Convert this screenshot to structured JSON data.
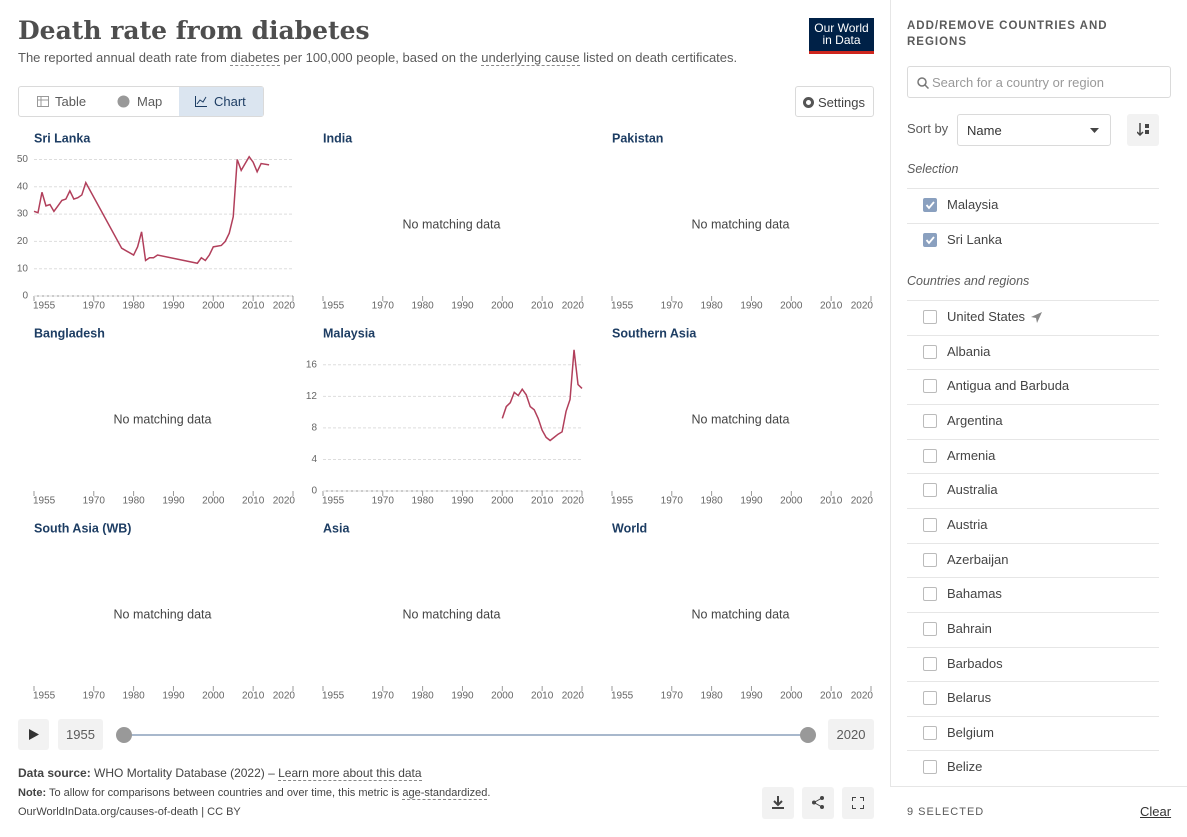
{
  "header": {
    "title": "Death rate from diabetes",
    "subtitle": [
      "The reported annual death rate from ",
      "diabetes",
      " per 100,000 people, based on the ",
      "underlying cause",
      " listed on death certificates."
    ],
    "logo": [
      "Our World",
      "in Data"
    ]
  },
  "tabs": [
    "Table",
    "Map",
    "Chart"
  ],
  "settings_button": "Settings",
  "chart_data": [
    {
      "type": "line",
      "title": "Sri Lanka",
      "color": "#b13f5b",
      "x": [
        1955,
        1956,
        1957,
        1958,
        1959,
        1960,
        1961,
        1962,
        1963,
        1964,
        1965,
        1966,
        1967,
        1968,
        1977,
        1980,
        1981,
        1982,
        1983,
        1984,
        1985,
        1986,
        1996,
        1997,
        1998,
        1999,
        2000,
        2002,
        2003,
        2004,
        2005,
        2006,
        2007,
        2008,
        2009,
        2010,
        2011,
        2012,
        2014
      ],
      "values": [
        31,
        30.5,
        38,
        33,
        33.5,
        31,
        33,
        35,
        35.5,
        38.5,
        35.5,
        36,
        37,
        41.5,
        17.5,
        15,
        18,
        23.5,
        13,
        14,
        14,
        15,
        12,
        14,
        13,
        15,
        18,
        18.5,
        20,
        23,
        29,
        50,
        46,
        48.5,
        51,
        49,
        45.5,
        48.5,
        48
      ],
      "xlim": [
        1955,
        2020
      ],
      "xticks": [
        1955,
        1970,
        1980,
        1990,
        2000,
        2010,
        2020
      ],
      "ylim": [
        0,
        52
      ],
      "yticks": [
        0,
        10,
        20,
        30,
        40,
        50
      ],
      "grid": true
    },
    {
      "type": "line",
      "title": "India",
      "message": "No matching data",
      "xlim": [
        1955,
        2020
      ],
      "xticks": [
        1955,
        1970,
        1980,
        1990,
        2000,
        2010,
        2020
      ]
    },
    {
      "type": "line",
      "title": "Pakistan",
      "message": "No matching data",
      "xlim": [
        1955,
        2020
      ],
      "xticks": [
        1955,
        1970,
        1980,
        1990,
        2000,
        2010,
        2020
      ]
    },
    {
      "type": "line",
      "title": "Bangladesh",
      "message": "No matching data",
      "xlim": [
        1955,
        2020
      ],
      "xticks": [
        1955,
        1970,
        1980,
        1990,
        2000,
        2010,
        2020
      ]
    },
    {
      "type": "line",
      "title": "Malaysia",
      "color": "#b13f5b",
      "x": [
        2000,
        2001,
        2002,
        2003,
        2004,
        2005,
        2006,
        2007,
        2008,
        2009,
        2010,
        2011,
        2012,
        2013,
        2014,
        2015,
        2016,
        2017,
        2018,
        2019,
        2020
      ],
      "values": [
        9.2,
        10.7,
        11.2,
        12.5,
        12.1,
        12.9,
        12.2,
        10.7,
        10.3,
        9.2,
        7.7,
        6.8,
        6.4,
        6.8,
        7.2,
        7.5,
        10.1,
        11.6,
        17.9,
        13.5,
        13
      ],
      "xlim": [
        1955,
        2020
      ],
      "xticks": [
        1955,
        1970,
        1980,
        1990,
        2000,
        2010,
        2020
      ],
      "ylim": [
        0,
        18
      ],
      "yticks": [
        0,
        4,
        8,
        12,
        16
      ],
      "grid": true
    },
    {
      "type": "line",
      "title": "Southern Asia",
      "message": "No matching data",
      "xlim": [
        1955,
        2020
      ],
      "xticks": [
        1955,
        1970,
        1980,
        1990,
        2000,
        2010,
        2020
      ]
    },
    {
      "type": "line",
      "title": "South Asia (WB)",
      "message": "No matching data",
      "xlim": [
        1955,
        2020
      ],
      "xticks": [
        1955,
        1970,
        1980,
        1990,
        2000,
        2010,
        2020
      ]
    },
    {
      "type": "line",
      "title": "Asia",
      "message": "No matching data",
      "xlim": [
        1955,
        2020
      ],
      "xticks": [
        1955,
        1970,
        1980,
        1990,
        2000,
        2010,
        2020
      ]
    },
    {
      "type": "line",
      "title": "World",
      "message": "No matching data",
      "xlim": [
        1955,
        2020
      ],
      "xticks": [
        1955,
        1970,
        1980,
        1990,
        2000,
        2010,
        2020
      ]
    }
  ],
  "timeline": {
    "start": 1955,
    "end": 2020
  },
  "footer": {
    "source_label": "Data source:",
    "source": "WHO Mortality Database (2022) – ",
    "source_link": "Learn more about this data",
    "note_label": "Note:",
    "note": "To allow for comparisons between countries and over time, this metric is ",
    "note_link": "age-standardized",
    "note_end": ".",
    "credit": "OurWorldInData.org/causes-of-death | CC BY"
  },
  "sidebar": {
    "heading": "ADD/REMOVE COUNTRIES AND REGIONS",
    "search_placeholder": "Search for a country or region",
    "sort_label": "Sort by",
    "sort_value": "Name",
    "selection_heading": "Selection",
    "selected": [
      "Malaysia",
      "Sri Lanka"
    ],
    "list_heading": "Countries and regions",
    "countries": [
      "United States",
      "Albania",
      "Antigua and Barbuda",
      "Argentina",
      "Armenia",
      "Australia",
      "Austria",
      "Azerbaijan",
      "Bahamas",
      "Bahrain",
      "Barbados",
      "Belarus",
      "Belgium",
      "Belize"
    ],
    "selected_count": "9 SELECTED",
    "clear": "Clear"
  }
}
